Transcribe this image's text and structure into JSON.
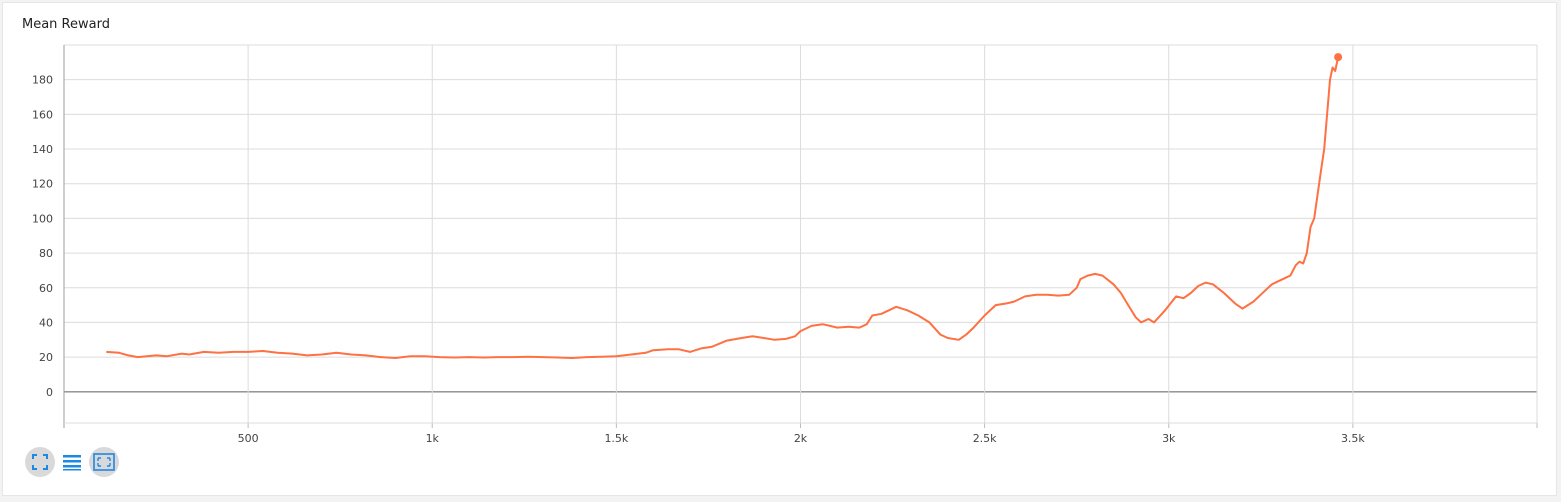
{
  "chart_data": {
    "type": "line",
    "title": "Mean Reward",
    "xlabel": "",
    "ylabel": "",
    "xlim": [
      0,
      4000
    ],
    "ylim": [
      -18,
      200
    ],
    "x_ticks": [
      500,
      1000,
      1500,
      2000,
      2500,
      3000,
      3500
    ],
    "x_tick_labels": [
      "500",
      "1k",
      "1.5k",
      "2k",
      "2.5k",
      "3k",
      "3.5k"
    ],
    "y_ticks": [
      0,
      20,
      40,
      60,
      80,
      100,
      120,
      140,
      160,
      180
    ],
    "grid": true,
    "series": [
      {
        "color": "#ff7043",
        "points": [
          [
            115,
            23
          ],
          [
            150,
            22.5
          ],
          [
            175,
            21
          ],
          [
            200,
            20
          ],
          [
            250,
            21
          ],
          [
            280,
            20.5
          ],
          [
            320,
            22
          ],
          [
            340,
            21.5
          ],
          [
            380,
            23
          ],
          [
            420,
            22.5
          ],
          [
            460,
            23
          ],
          [
            500,
            23
          ],
          [
            540,
            23.5
          ],
          [
            580,
            22.5
          ],
          [
            620,
            22
          ],
          [
            660,
            21
          ],
          [
            700,
            21.5
          ],
          [
            740,
            22.5
          ],
          [
            780,
            21.5
          ],
          [
            820,
            21
          ],
          [
            860,
            20
          ],
          [
            900,
            19.5
          ],
          [
            940,
            20.5
          ],
          [
            980,
            20.5
          ],
          [
            1020,
            20
          ],
          [
            1060,
            19.8
          ],
          [
            1100,
            20
          ],
          [
            1140,
            19.8
          ],
          [
            1180,
            20
          ],
          [
            1220,
            20
          ],
          [
            1260,
            20.2
          ],
          [
            1300,
            20
          ],
          [
            1340,
            19.8
          ],
          [
            1380,
            19.5
          ],
          [
            1420,
            20
          ],
          [
            1460,
            20.2
          ],
          [
            1500,
            20.5
          ],
          [
            1540,
            21.5
          ],
          [
            1580,
            22.5
          ],
          [
            1600,
            24
          ],
          [
            1640,
            24.5
          ],
          [
            1670,
            24.5
          ],
          [
            1700,
            23
          ],
          [
            1730,
            25
          ],
          [
            1760,
            26
          ],
          [
            1800,
            29.5
          ],
          [
            1840,
            31
          ],
          [
            1870,
            32
          ],
          [
            1900,
            31
          ],
          [
            1930,
            30
          ],
          [
            1960,
            30.5
          ],
          [
            1985,
            32
          ],
          [
            2000,
            35
          ],
          [
            2030,
            38
          ],
          [
            2060,
            39
          ],
          [
            2080,
            38
          ],
          [
            2100,
            37
          ],
          [
            2130,
            37.5
          ],
          [
            2160,
            37
          ],
          [
            2180,
            39
          ],
          [
            2195,
            44
          ],
          [
            2220,
            45
          ],
          [
            2240,
            47
          ],
          [
            2260,
            49
          ],
          [
            2290,
            47
          ],
          [
            2320,
            44
          ],
          [
            2350,
            40
          ],
          [
            2380,
            33
          ],
          [
            2400,
            31
          ],
          [
            2430,
            30
          ],
          [
            2450,
            33
          ],
          [
            2470,
            37
          ],
          [
            2500,
            44
          ],
          [
            2530,
            50
          ],
          [
            2560,
            51
          ],
          [
            2580,
            52
          ],
          [
            2610,
            55
          ],
          [
            2640,
            56
          ],
          [
            2670,
            56
          ],
          [
            2700,
            55.5
          ],
          [
            2730,
            56
          ],
          [
            2750,
            60
          ],
          [
            2760,
            65
          ],
          [
            2780,
            67
          ],
          [
            2800,
            68
          ],
          [
            2820,
            67
          ],
          [
            2850,
            62
          ],
          [
            2870,
            57
          ],
          [
            2890,
            50
          ],
          [
            2910,
            43
          ],
          [
            2925,
            40
          ],
          [
            2945,
            42
          ],
          [
            2960,
            40
          ],
          [
            2990,
            47
          ],
          [
            3020,
            55
          ],
          [
            3040,
            54
          ],
          [
            3060,
            57
          ],
          [
            3080,
            61
          ],
          [
            3100,
            63
          ],
          [
            3120,
            62
          ],
          [
            3150,
            57
          ],
          [
            3180,
            51
          ],
          [
            3200,
            48
          ],
          [
            3230,
            52
          ],
          [
            3260,
            58
          ],
          [
            3280,
            62
          ],
          [
            3300,
            64
          ],
          [
            3320,
            66
          ],
          [
            3330,
            67
          ],
          [
            3345,
            73
          ],
          [
            3355,
            75
          ],
          [
            3365,
            74
          ],
          [
            3375,
            80
          ],
          [
            3385,
            95
          ],
          [
            3395,
            100
          ],
          [
            3405,
            115
          ],
          [
            3415,
            130
          ],
          [
            3422,
            140
          ],
          [
            3430,
            160
          ],
          [
            3438,
            180
          ],
          [
            3445,
            187
          ],
          [
            3452,
            185
          ],
          [
            3460,
            193
          ]
        ]
      }
    ]
  },
  "toolbar": {
    "expand_icon": "expand-icon",
    "data_icon": "list-icon",
    "fit_icon": "fit-domain-icon",
    "accent": "#1e88e5"
  }
}
